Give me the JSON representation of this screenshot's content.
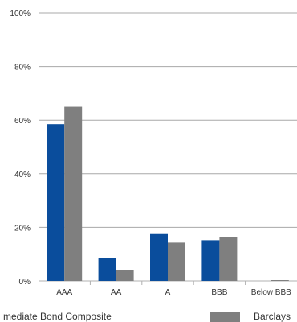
{
  "chart_data": {
    "type": "bar",
    "categories": [
      "AAA",
      "AA",
      "A",
      "BBB",
      "Below BBB"
    ],
    "series": [
      {
        "name": "mediate Bond Composite",
        "color": "#0a4d9c",
        "values": [
          58.5,
          8.5,
          17.5,
          15.2,
          0
        ]
      },
      {
        "name": "Barclays",
        "color": "#7f7f7f",
        "values": [
          65.0,
          4.0,
          14.3,
          16.3,
          0.3
        ]
      }
    ],
    "ylim": [
      0,
      100
    ],
    "yticks": [
      "0%",
      "20%",
      "40%",
      "60%",
      "80%",
      "100%"
    ],
    "grid": true,
    "legend_position": "bottom"
  }
}
